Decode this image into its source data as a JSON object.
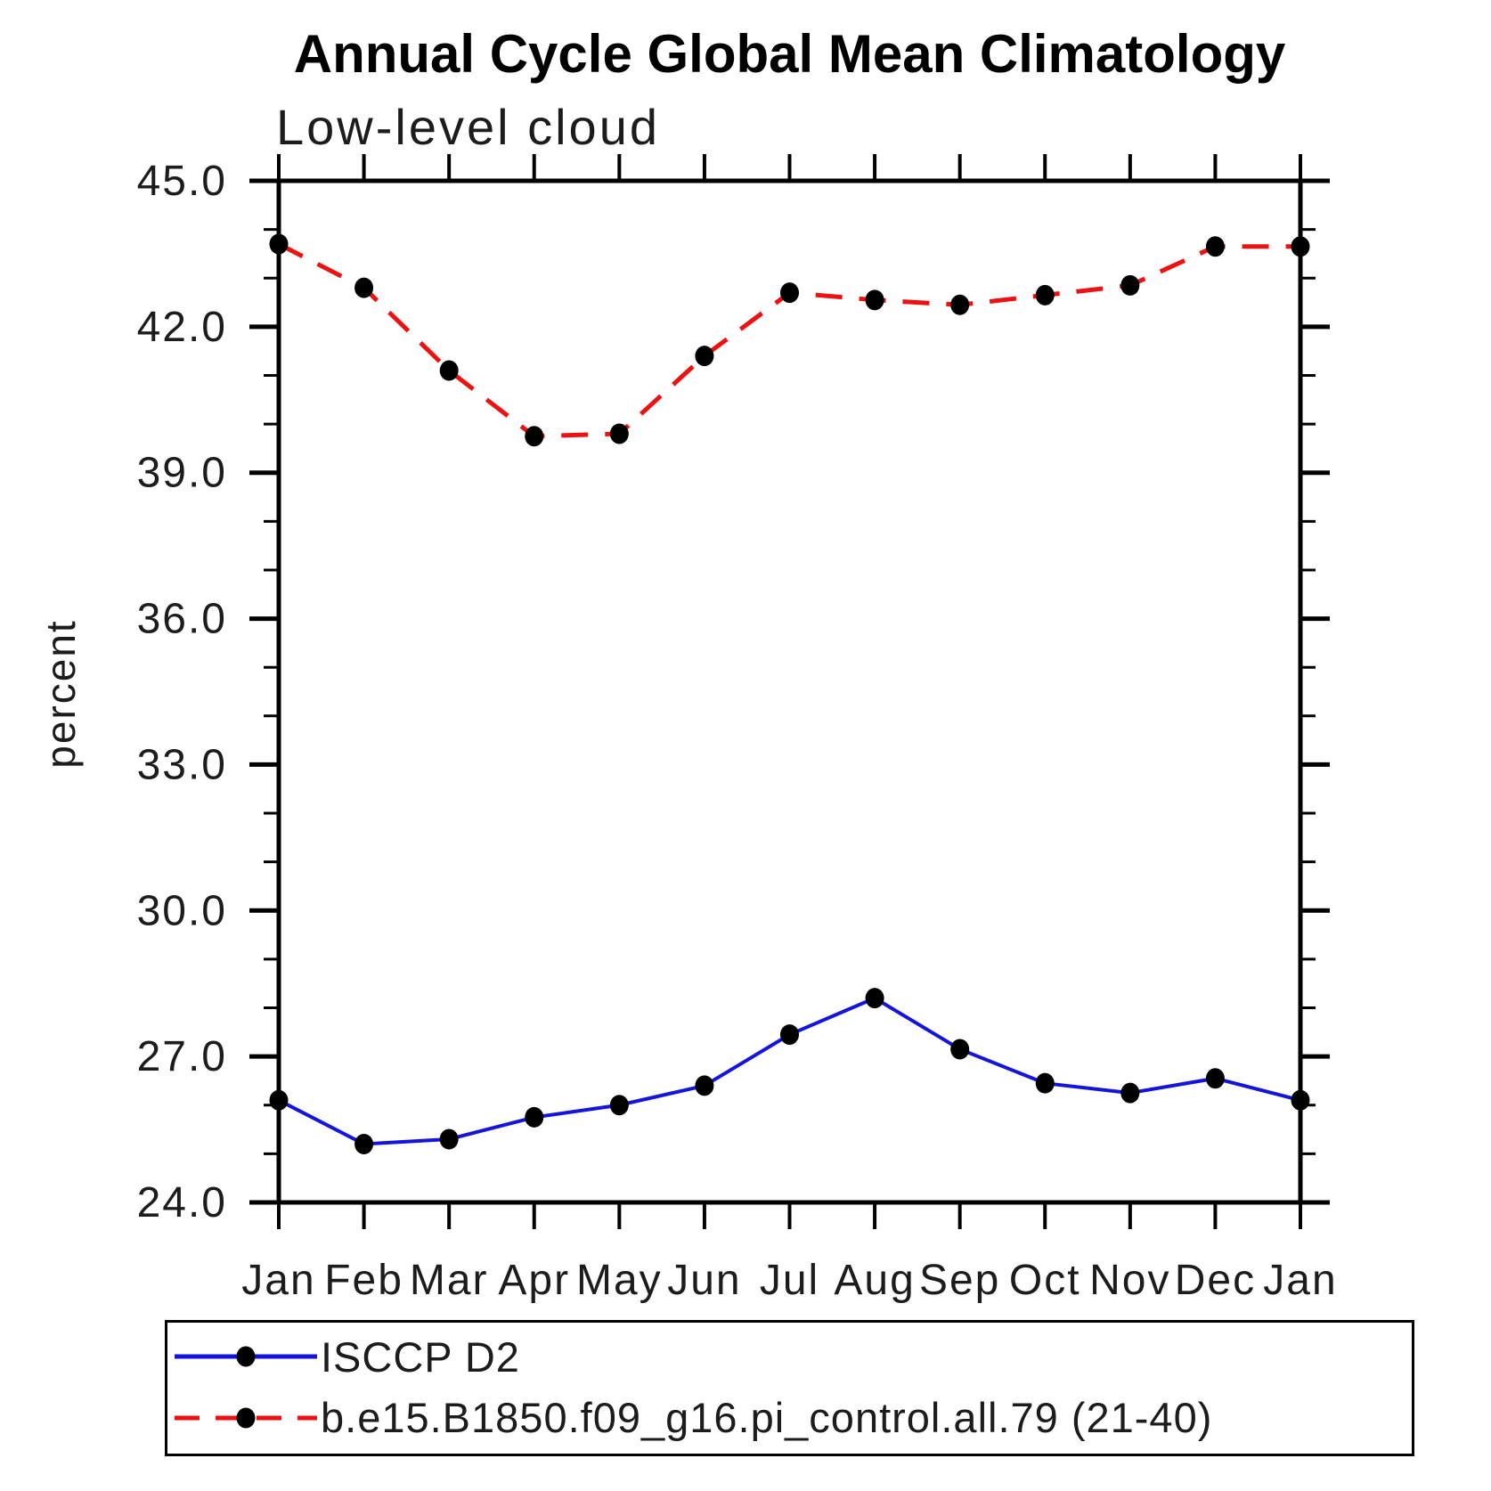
{
  "chart_data": {
    "type": "line",
    "title": "Annual Cycle Global Mean Climatology",
    "subtitle": "Low-level cloud",
    "ylabel": "percent",
    "xlabel": "",
    "ylim": [
      24.0,
      45.0
    ],
    "ytick_major": [
      24.0,
      27.0,
      30.0,
      33.0,
      36.0,
      39.0,
      42.0,
      45.0
    ],
    "ytick_major_labels": [
      "24.0",
      "27.0",
      "30.0",
      "33.0",
      "36.0",
      "39.0",
      "42.0",
      "45.0"
    ],
    "ytick_minor_step": 1.0,
    "grid": false,
    "legend_position": "bottom-left",
    "categories": [
      "Jan",
      "Feb",
      "Mar",
      "Apr",
      "May",
      "Jun",
      "Jul",
      "Aug",
      "Sep",
      "Oct",
      "Nov",
      "Dec",
      "Jan"
    ],
    "series": [
      {
        "name": "ISCCP D2",
        "color": "#1414DC",
        "line_style": "solid",
        "marker": "filled-ellipse",
        "marker_color": "#000000",
        "values": [
          26.1,
          25.2,
          25.3,
          25.75,
          26.0,
          26.4,
          27.45,
          28.2,
          27.15,
          26.45,
          26.25,
          26.55,
          26.1
        ]
      },
      {
        "name": "b.e15.B1850.f09_g16.pi_control.all.79 (21-40)",
        "color": "#EE1111",
        "line_style": "dashed",
        "marker": "filled-ellipse",
        "marker_color": "#000000",
        "values": [
          43.7,
          42.8,
          41.1,
          39.75,
          39.8,
          41.4,
          42.7,
          42.55,
          42.45,
          42.65,
          42.85,
          43.65,
          43.65
        ]
      }
    ]
  }
}
